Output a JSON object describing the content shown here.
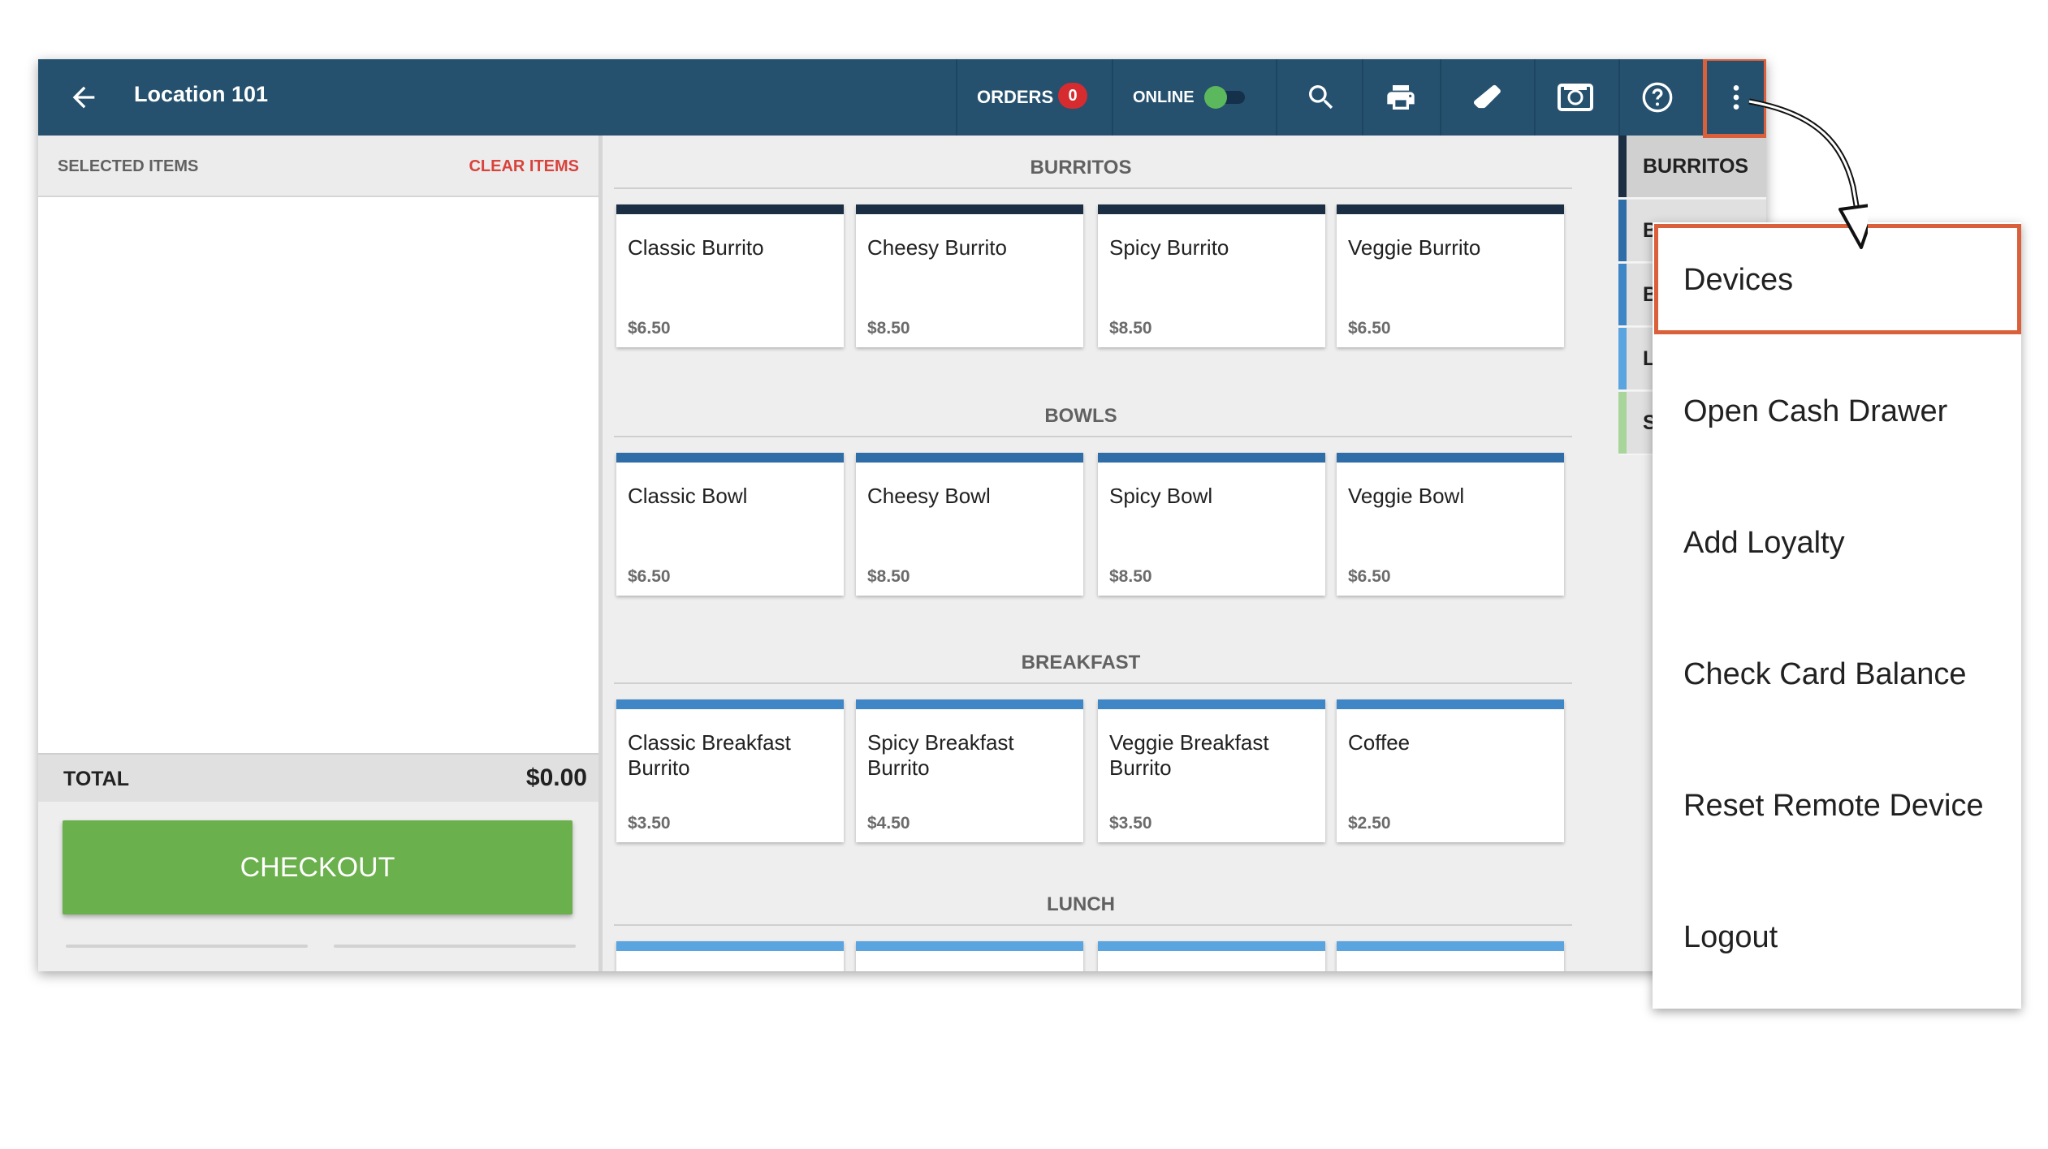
{
  "header": {
    "back_icon": "arrow-left-icon",
    "location": "Location 101",
    "orders_label": "ORDERS",
    "orders_count": "0",
    "online_label": "ONLINE",
    "online_on": true,
    "icons": [
      "search-icon",
      "printer-icon",
      "eraser-icon",
      "cash-drawer-icon",
      "help-icon",
      "more-vert-icon"
    ],
    "colors": {
      "bar": "#25516f",
      "badge": "#d62b2f",
      "toggle": "#5cb85c"
    }
  },
  "order_panel": {
    "title": "SELECTED ITEMS",
    "clear_label": "CLEAR ITEMS",
    "total_label": "TOTAL",
    "total_value": "$0.00",
    "checkout_label": "CHECKOUT",
    "colors": {
      "checkout": "#6ab04c",
      "clear": "#d8433b"
    }
  },
  "menu": {
    "sections": [
      {
        "title": "BURRITOS",
        "accent": "#1b2e44",
        "items": [
          {
            "name": "Classic Burrito",
            "price": "$6.50"
          },
          {
            "name": "Cheesy Burrito",
            "price": "$8.50"
          },
          {
            "name": "Spicy Burrito",
            "price": "$8.50"
          },
          {
            "name": "Veggie Burrito",
            "price": "$6.50"
          }
        ]
      },
      {
        "title": "BOWLS",
        "accent": "#2f6da8",
        "items": [
          {
            "name": "Classic Bowl",
            "price": "$6.50"
          },
          {
            "name": "Cheesy Bowl",
            "price": "$8.50"
          },
          {
            "name": "Spicy Bowl",
            "price": "$8.50"
          },
          {
            "name": "Veggie Bowl",
            "price": "$6.50"
          }
        ]
      },
      {
        "title": "BREAKFAST",
        "accent": "#3f86c6",
        "items": [
          {
            "name": "Classic Breakfast Burrito",
            "price": "$3.50"
          },
          {
            "name": "Spicy Breakfast Burrito",
            "price": "$4.50"
          },
          {
            "name": "Veggie Breakfast Burrito",
            "price": "$3.50"
          },
          {
            "name": "Coffee",
            "price": "$2.50"
          }
        ]
      },
      {
        "title": "LUNCH",
        "accent": "#5aa4df",
        "items": [
          {
            "name": "",
            "price": ""
          },
          {
            "name": "",
            "price": ""
          },
          {
            "name": "",
            "price": ""
          },
          {
            "name": "",
            "price": ""
          }
        ]
      }
    ]
  },
  "categories": [
    {
      "label": "BURRITOS",
      "color": "#1b2e44",
      "active": true
    },
    {
      "label": "BOWLS",
      "color": "#2f6da8",
      "active": false
    },
    {
      "label": "BREAKFAST",
      "color": "#3f86c6",
      "active": false
    },
    {
      "label": "LUNCH",
      "color": "#5aa4df",
      "active": false
    },
    {
      "label": "SIDES",
      "color": "#a8d59a",
      "active": false
    }
  ],
  "overflow_menu": {
    "items": [
      {
        "label": "Devices",
        "highlighted": true
      },
      {
        "label": "Open Cash Drawer"
      },
      {
        "label": "Add Loyalty"
      },
      {
        "label": "Check Card Balance"
      },
      {
        "label": "Reset Remote Device"
      },
      {
        "label": "Logout"
      }
    ],
    "highlight_color": "#d9603b"
  }
}
